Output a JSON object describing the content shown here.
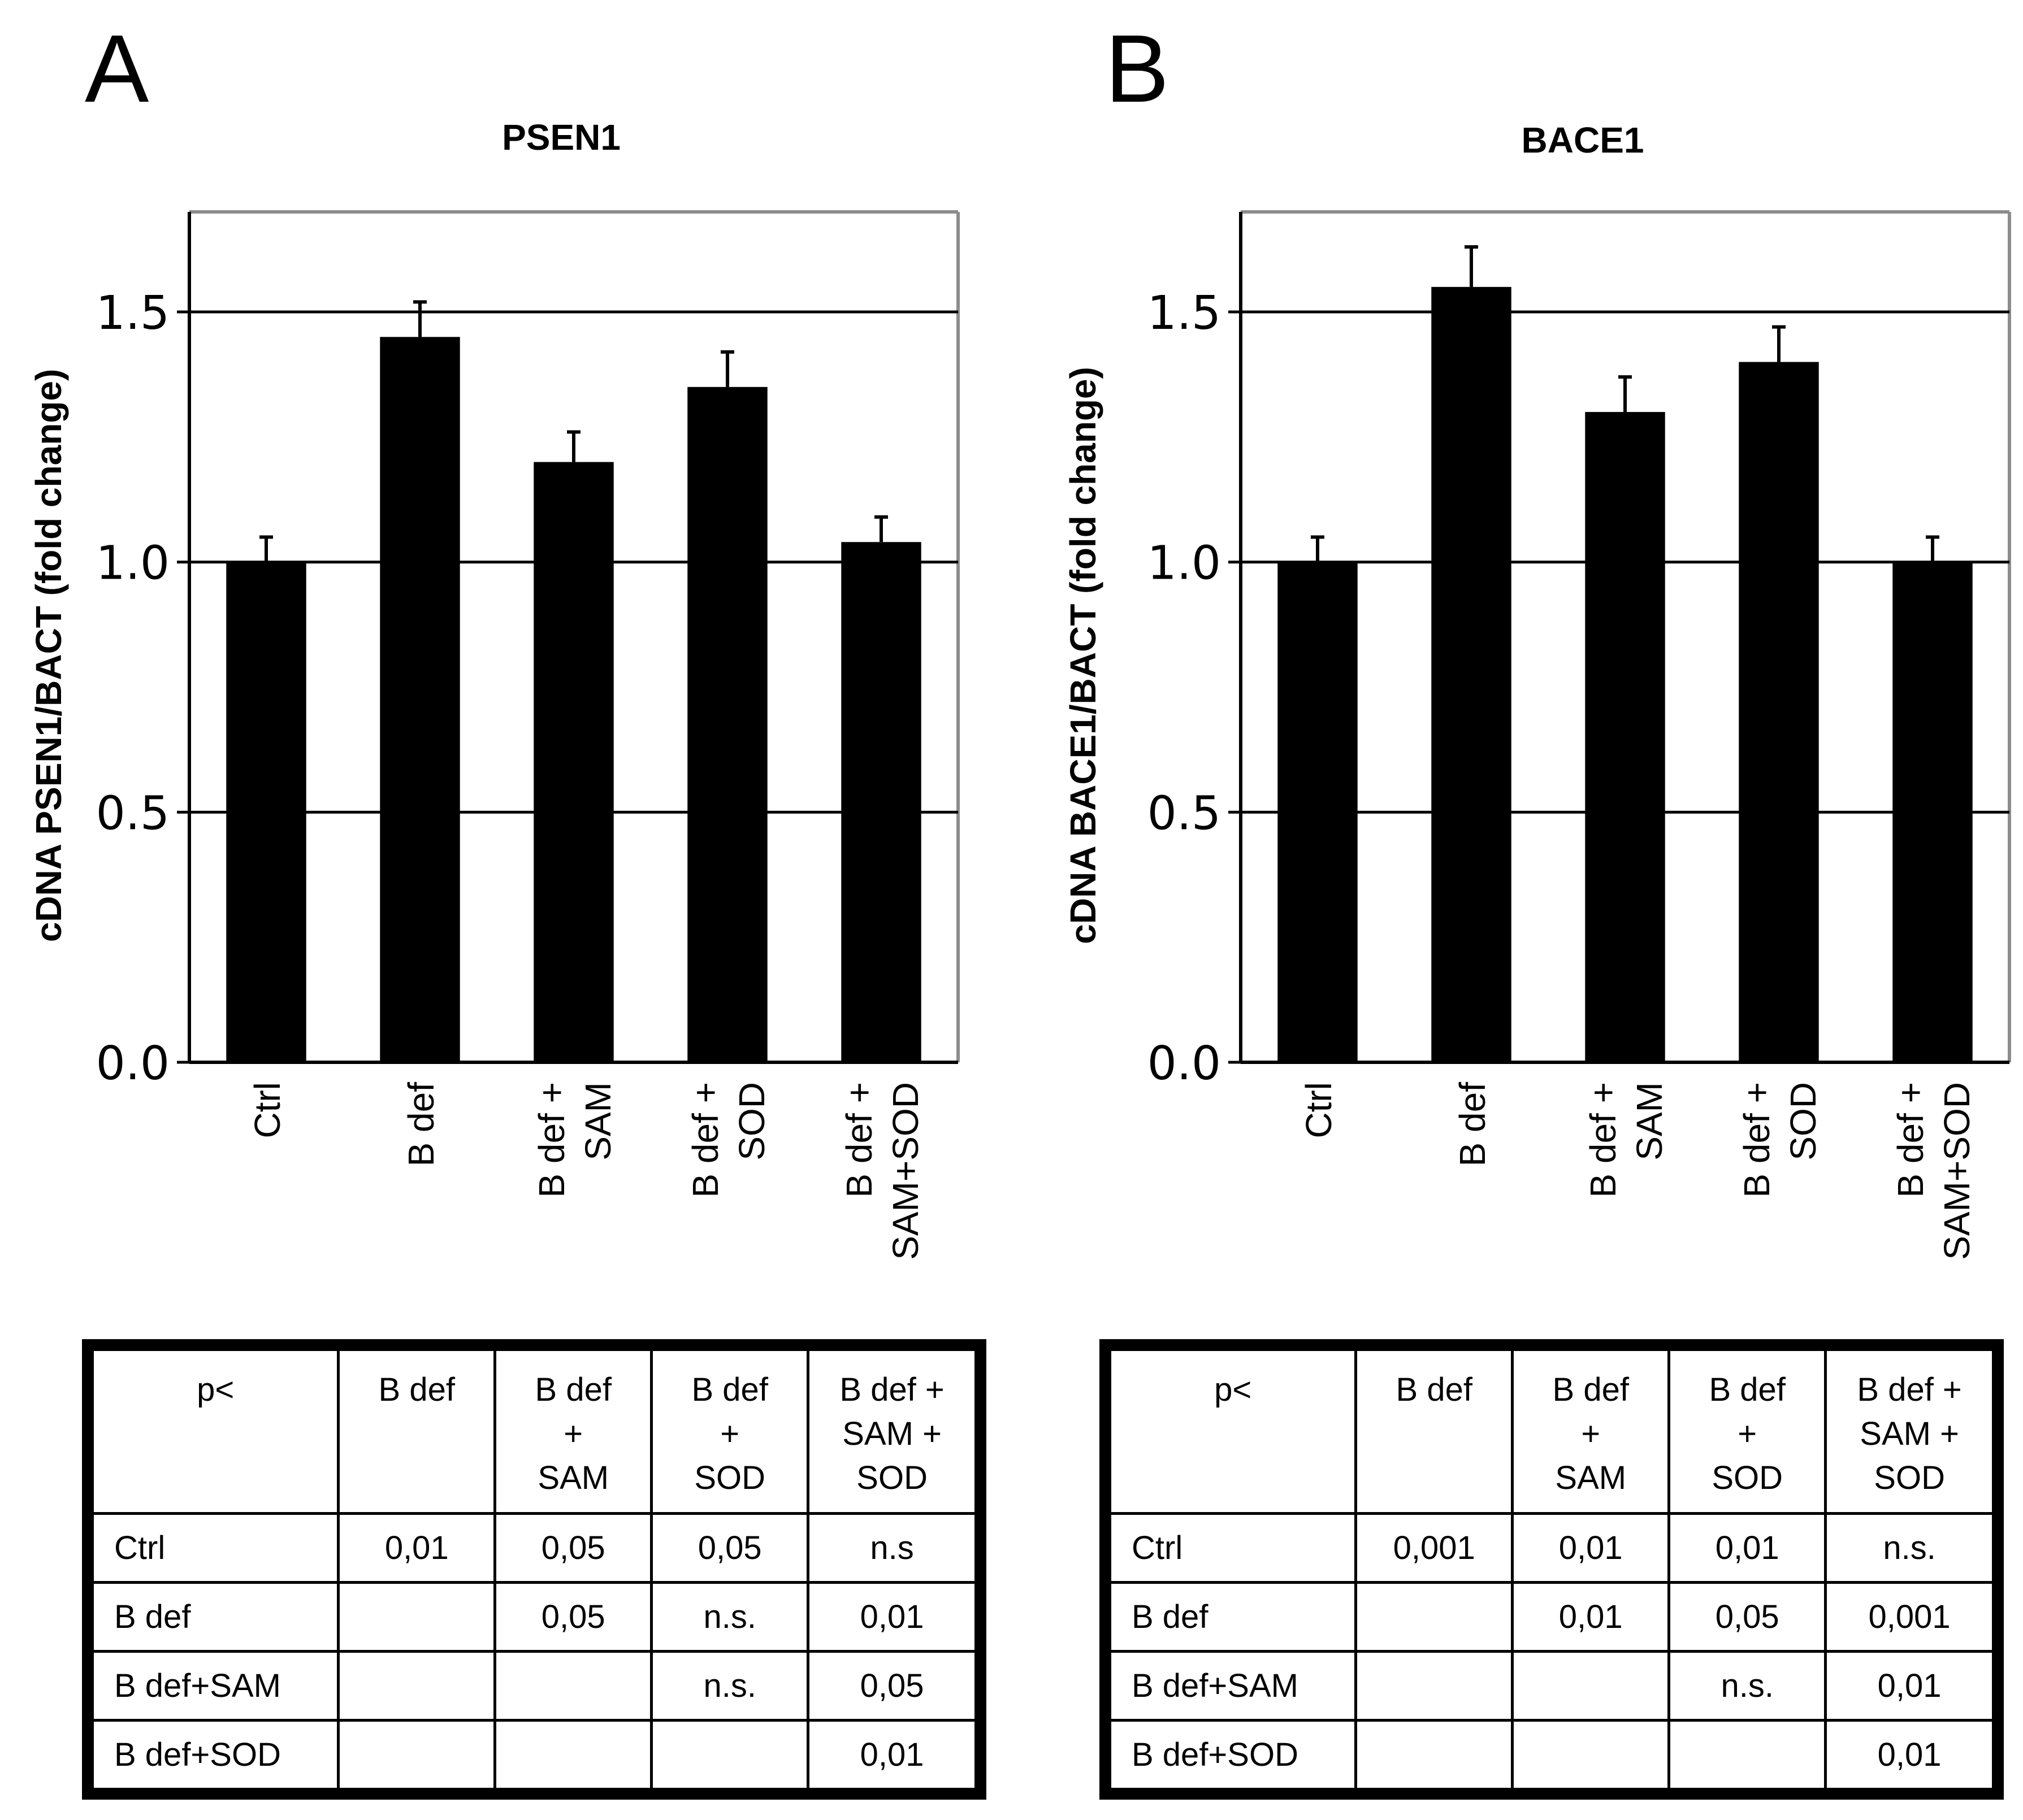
{
  "panels": [
    {
      "letter": "A",
      "title": "PSEN1",
      "ylabel": "cDNA PSEN1/BACT (fold change)",
      "p_table": {
        "corner": "p<",
        "columns": [
          "B def",
          "B def\n+\nSAM",
          "B def\n+\nSOD",
          "B def +\nSAM +\nSOD"
        ],
        "rows": [
          {
            "label": "Ctrl",
            "values": [
              "0,01",
              "0,05",
              "0,05",
              "n.s"
            ]
          },
          {
            "label": "B def",
            "values": [
              "",
              "0,05",
              "n.s.",
              "0,01"
            ]
          },
          {
            "label": "B def+SAM",
            "values": [
              "",
              "",
              "n.s.",
              "0,05"
            ]
          },
          {
            "label": "B def+SOD",
            "values": [
              "",
              "",
              "",
              "0,01"
            ]
          }
        ]
      }
    },
    {
      "letter": "B",
      "title": "BACE1",
      "ylabel": "cDNA BACE1/BACT (fold change)",
      "p_table": {
        "corner": "p<",
        "columns": [
          "B def",
          "B def\n+\nSAM",
          "B def\n+\nSOD",
          "B def +\nSAM +\nSOD"
        ],
        "rows": [
          {
            "label": "Ctrl",
            "values": [
              "0,001",
              "0,01",
              "0,01",
              "n.s."
            ]
          },
          {
            "label": "B def",
            "values": [
              "",
              "0,01",
              "0,05",
              "0,001"
            ]
          },
          {
            "label": "B def+SAM",
            "values": [
              "",
              "",
              "n.s.",
              "0,01"
            ]
          },
          {
            "label": "B def+SOD",
            "values": [
              "",
              "",
              "",
              "0,01"
            ]
          }
        ]
      }
    }
  ],
  "chart_data": [
    {
      "type": "bar",
      "title": "PSEN1",
      "ylabel": "cDNA PSEN1/BACT (fold change)",
      "xlabel": "",
      "categories": [
        "Ctrl",
        "B def",
        "B def +\nSAM",
        "B def +\nSOD",
        "B def +\nSAM+SOD"
      ],
      "values": [
        1.0,
        1.45,
        1.2,
        1.35,
        1.04
      ],
      "errors": [
        0.05,
        0.07,
        0.06,
        0.07,
        0.05
      ],
      "ylim": [
        0,
        1.7
      ],
      "yticks": [
        "0.0",
        "0.5",
        "1.0",
        "1.5"
      ],
      "grid": true,
      "bar_color": "#000000"
    },
    {
      "type": "bar",
      "title": "BACE1",
      "ylabel": "cDNA BACE1/BACT (fold change)",
      "xlabel": "",
      "categories": [
        "Ctrl",
        "B def",
        "B def +\nSAM",
        "B def +\nSOD",
        "B def +\nSAM+SOD"
      ],
      "values": [
        1.0,
        1.55,
        1.3,
        1.4,
        1.0
      ],
      "errors": [
        0.05,
        0.08,
        0.07,
        0.07,
        0.05
      ],
      "ylim": [
        0,
        1.7
      ],
      "yticks": [
        "0.0",
        "0.5",
        "1.0",
        "1.5"
      ],
      "grid": true,
      "bar_color": "#000000"
    }
  ]
}
